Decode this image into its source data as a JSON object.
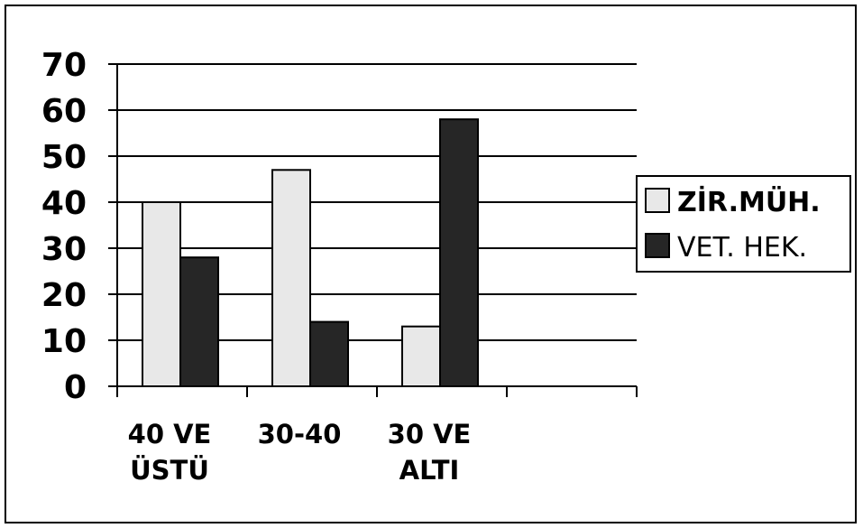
{
  "chart_data": {
    "type": "bar",
    "title": "",
    "xlabel": "",
    "ylabel": "",
    "categories": [
      [
        "40 VE",
        "ÜSTÜ"
      ],
      [
        "30-40"
      ],
      [
        "30 VE",
        "ALTI"
      ],
      []
    ],
    "series": [
      {
        "name": "ZİR.MÜH.",
        "values": [
          40,
          47,
          13,
          null
        ],
        "color": "#e8e8e8"
      },
      {
        "name": "VET. HEK.",
        "values": [
          28,
          14,
          58,
          null
        ],
        "color": "#262626"
      }
    ],
    "ylim": [
      0,
      70
    ],
    "yticks": [
      "0",
      "10",
      "20",
      "30",
      "40",
      "50",
      "60",
      "70"
    ],
    "grid": true,
    "legend_position": "right",
    "legend_bold": [
      true,
      false
    ]
  }
}
